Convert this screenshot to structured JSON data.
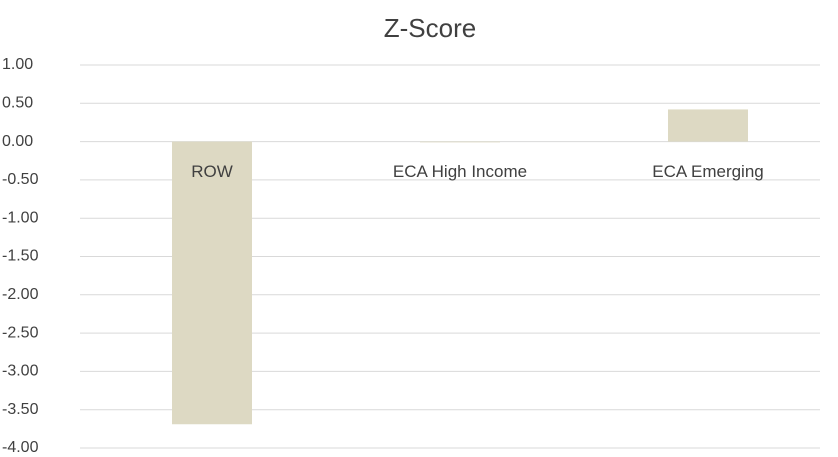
{
  "chart_data": {
    "type": "bar",
    "title": "Z-Score",
    "categories": [
      "ROW",
      "ECA High Income",
      "ECA Emerging"
    ],
    "values": [
      -3.69,
      -0.01,
      0.42
    ],
    "color": "#ddd9c3",
    "ylim": [
      -4,
      1
    ],
    "yticks": [
      {
        "value": 1,
        "label": "1.00"
      },
      {
        "value": 0.5,
        "label": "0.50"
      },
      {
        "value": 0,
        "label": "0.00"
      },
      {
        "value": -0.5,
        "label": "-0.50"
      },
      {
        "value": -1,
        "label": "-1.00"
      },
      {
        "value": -1.5,
        "label": "-1.50"
      },
      {
        "value": -2,
        "label": "-2.00"
      },
      {
        "value": -2.5,
        "label": "-2.50"
      },
      {
        "value": -3,
        "label": "-3.00"
      },
      {
        "value": -3.5,
        "label": "-3.50"
      },
      {
        "value": -4,
        "label": "-4.00"
      }
    ],
    "grid": true
  }
}
